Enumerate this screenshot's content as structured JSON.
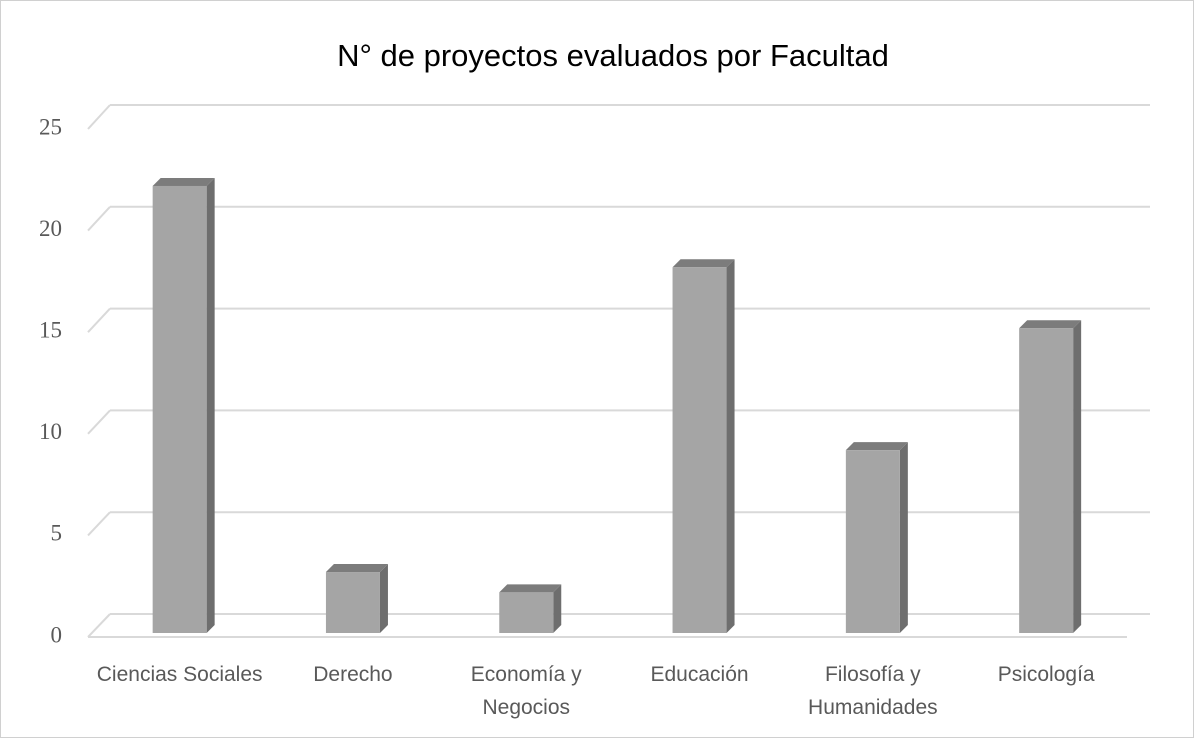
{
  "chart_data": {
    "type": "bar3d",
    "title": "N° de proyectos evaluados por Facultad",
    "categories": [
      "Ciencias Sociales",
      "Derecho",
      "Economía y Negocios",
      "Educación",
      "Filosofía y Humanidades",
      "Psicología"
    ],
    "values": [
      22,
      3,
      2,
      18,
      9,
      15
    ],
    "color": "#a5a5a5",
    "ylim": [
      0,
      25
    ],
    "yticks": [
      0,
      5,
      10,
      15,
      20,
      25
    ],
    "grid": true
  }
}
